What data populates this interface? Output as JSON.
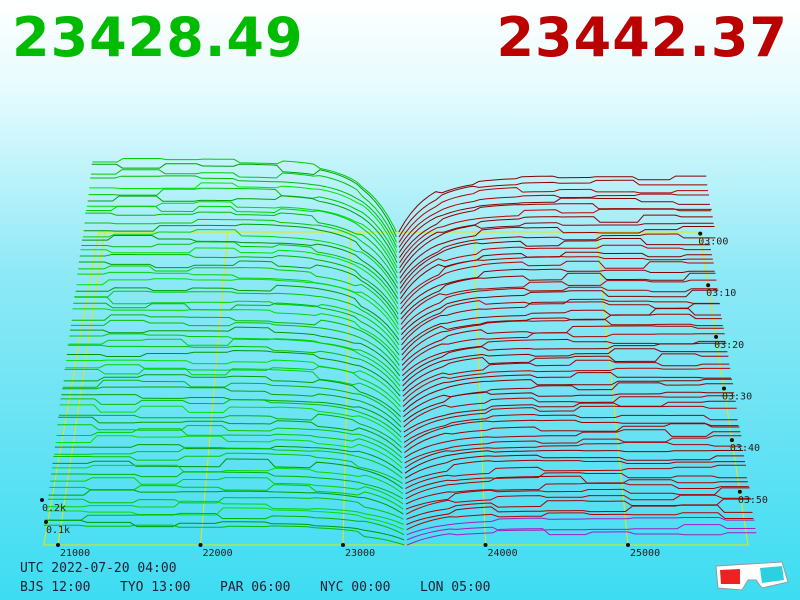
{
  "header": {
    "bid": "23428.49",
    "ask": "23442.37"
  },
  "price_axis": [
    "21000",
    "22000",
    "23000",
    "24000",
    "25000"
  ],
  "time_axis": [
    "03:00",
    "03:10",
    "03:20",
    "03:30",
    "03:40",
    "03:50"
  ],
  "depth_axis": [
    "0.2k",
    "0.1k"
  ],
  "footer": {
    "utc": "UTC 2022-07-20 04:00",
    "zones": [
      "BJS 12:00",
      "TYO 13:00",
      "PAR 06:00",
      "NYC 00:00",
      "LON 05:00"
    ]
  }
}
